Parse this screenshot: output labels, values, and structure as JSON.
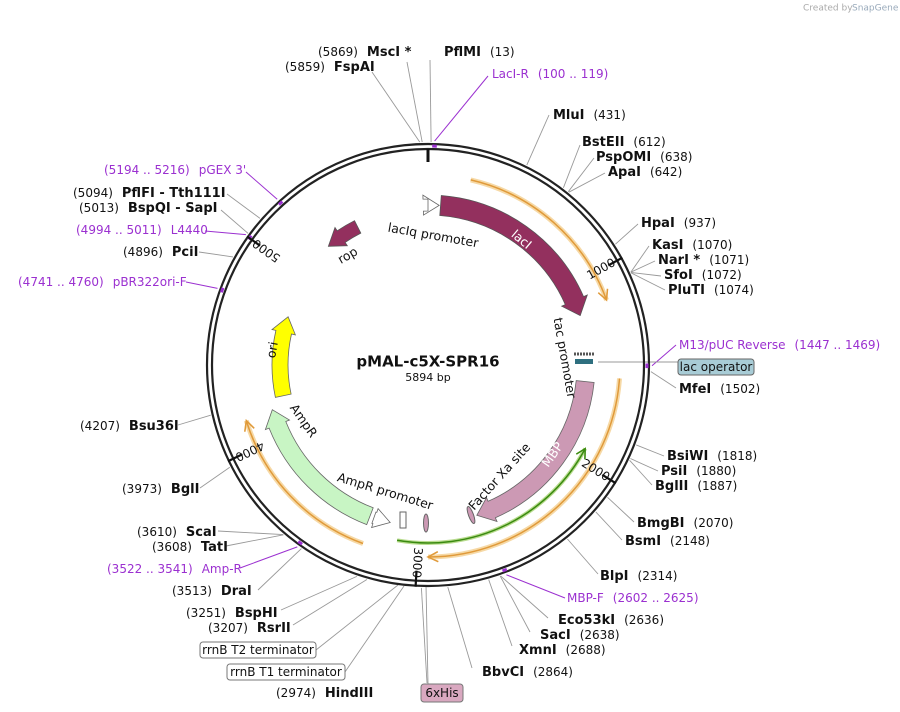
{
  "header": {
    "credit": "Created by",
    "brand": "SnapGene"
  },
  "map": {
    "name": "pMAL-c5X-SPR16",
    "length": "5894 bp"
  },
  "ticks": [
    1000,
    2000,
    3000,
    4000,
    5000
  ],
  "sites": [
    {
      "name": "MscI *",
      "pos": "(5869)"
    },
    {
      "name": "FspAI",
      "pos": "(5859)"
    },
    {
      "name": "PflMI",
      "pos": "(13)"
    },
    {
      "name": "MluI",
      "pos": "(431)"
    },
    {
      "name": "BstEII",
      "pos": "(612)"
    },
    {
      "name": "PspOMI",
      "pos": "(638)"
    },
    {
      "name": "ApaI",
      "pos": "(642)"
    },
    {
      "name": "HpaI",
      "pos": "(937)"
    },
    {
      "name": "KasI",
      "pos": "(1070)"
    },
    {
      "name": "NarI *",
      "pos": "(1071)"
    },
    {
      "name": "SfoI",
      "pos": "(1072)"
    },
    {
      "name": "PluTI",
      "pos": "(1074)"
    },
    {
      "name": "MfeI",
      "pos": "(1502)"
    },
    {
      "name": "BsiWI",
      "pos": "(1818)"
    },
    {
      "name": "PsiI",
      "pos": "(1880)"
    },
    {
      "name": "BglII",
      "pos": "(1887)"
    },
    {
      "name": "BmgBI",
      "pos": "(2070)"
    },
    {
      "name": "BsmI",
      "pos": "(2148)"
    },
    {
      "name": "BlpI",
      "pos": "(2314)"
    },
    {
      "name": "Eco53kI",
      "pos": "(2636)"
    },
    {
      "name": "SacI",
      "pos": "(2638)"
    },
    {
      "name": "XmnI",
      "pos": "(2688)"
    },
    {
      "name": "BbvCI",
      "pos": "(2864)"
    },
    {
      "name": "HindIII",
      "pos": "(2974)"
    },
    {
      "name": "RsrII",
      "pos": "(3207)"
    },
    {
      "name": "BspHI",
      "pos": "(3251)"
    },
    {
      "name": "DraI",
      "pos": "(3513)"
    },
    {
      "name": "TatI",
      "pos": "(3608)"
    },
    {
      "name": "ScaI",
      "pos": "(3610)"
    },
    {
      "name": "BglI",
      "pos": "(3973)"
    },
    {
      "name": "Bsu36I",
      "pos": "(4207)"
    },
    {
      "name": "PciI",
      "pos": "(4896)"
    },
    {
      "name": "BspQI  - SapI",
      "pos": "(5013)"
    },
    {
      "name": "PflFI  - Tth111I",
      "pos": "(5094)"
    }
  ],
  "primers": [
    {
      "name": "LacI-R",
      "range": "(100 .. 119)"
    },
    {
      "name": "M13/pUC Reverse",
      "range": "(1447 .. 1469)"
    },
    {
      "name": "MBP-F",
      "range": "(2602 .. 2625)"
    },
    {
      "name": "Amp-R",
      "range": "(3522 .. 3541)"
    },
    {
      "name": "pBR322ori-F",
      "range": "(4741 .. 4760)"
    },
    {
      "name": "L4440",
      "range": "(4994 .. 5011)"
    },
    {
      "name": "pGEX 3'",
      "range": "(5194 .. 5216)"
    }
  ],
  "features": [
    "lacIq promoter",
    "lacI",
    "rop",
    "ori",
    "AmpR",
    "AmpR promoter",
    "tac promoter",
    "MBP",
    "Factor Xa site"
  ],
  "boxed_features": [
    "lac operator",
    "rrnB T2 terminator",
    "rrnB T1 terminator",
    "6xHis"
  ]
}
